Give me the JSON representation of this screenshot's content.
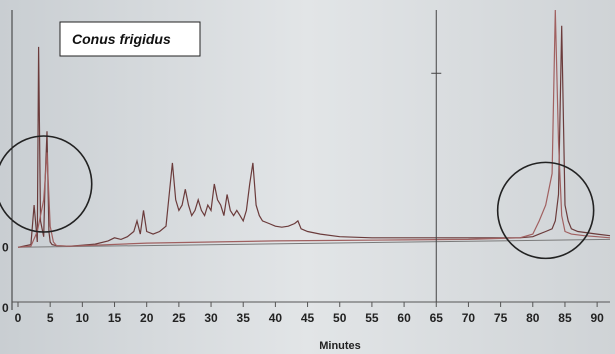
{
  "chart_data": {
    "type": "line",
    "title": "Conus frigidus",
    "xlabel": "Minutes",
    "ylabel": "",
    "xlim": [
      0,
      92
    ],
    "ylim": [
      -10,
      45
    ],
    "x_ticks": [
      0,
      5,
      10,
      15,
      20,
      25,
      30,
      35,
      40,
      45,
      50,
      55,
      60,
      65,
      70,
      75,
      80,
      85,
      90
    ],
    "y_ticks_visible": [
      "0",
      "0"
    ],
    "series": [
      {
        "color": "#6b3b3b",
        "x": [
          0,
          2,
          2.5,
          3,
          3.2,
          3.5,
          4,
          4.2,
          4.5,
          4.8,
          5,
          5.3,
          6,
          8,
          10,
          12,
          14,
          15,
          16,
          17,
          18,
          18.5,
          19,
          19.5,
          20,
          21,
          22,
          23,
          23.5,
          24,
          24.5,
          25,
          25.5,
          26,
          26.5,
          27,
          27.5,
          28,
          28.5,
          29,
          29.5,
          30,
          30.5,
          31,
          31.5,
          32,
          32.5,
          33,
          33.5,
          34,
          34.5,
          35,
          35.5,
          36,
          36.5,
          37,
          37.5,
          38,
          39,
          40,
          41,
          42,
          43,
          43.5,
          44,
          45,
          47,
          50,
          55,
          60,
          65,
          70,
          75,
          78,
          80,
          81,
          82,
          83,
          83.5,
          84,
          84.5,
          85,
          85.5,
          86,
          87,
          90,
          92
        ],
        "y": [
          0,
          0.5,
          8,
          1,
          38,
          5,
          2,
          12,
          22,
          3,
          1,
          0.5,
          0.3,
          0.2,
          0.4,
          0.6,
          1.2,
          1.8,
          1.5,
          2,
          3,
          5,
          2.5,
          7,
          3,
          2.5,
          3,
          4,
          10,
          16,
          9,
          7,
          8,
          11,
          8,
          6,
          7,
          9,
          7,
          6,
          8,
          7,
          12,
          9,
          8,
          6,
          10,
          7,
          6,
          7,
          6,
          5,
          7,
          12,
          16,
          8,
          6,
          5,
          4.5,
          4,
          3.8,
          4,
          4.5,
          5,
          3.5,
          3,
          2.5,
          2,
          1.8,
          1.8,
          1.8,
          1.8,
          1.8,
          1.8,
          2,
          2.5,
          3,
          3.5,
          5,
          10,
          42,
          8,
          5,
          3.5,
          3,
          2.5,
          2.2
        ]
      },
      {
        "color": "#a06060",
        "x": [
          0,
          2,
          3,
          4,
          4.5,
          5,
          5.5,
          6,
          8,
          10,
          20,
          30,
          40,
          50,
          60,
          70,
          78,
          80,
          81,
          82,
          83,
          83.5,
          84,
          84.5,
          85,
          86,
          88,
          90,
          92
        ],
        "y": [
          0,
          0.2,
          3,
          9,
          18,
          4,
          1,
          0.3,
          0.2,
          0.3,
          0.8,
          1,
          1.2,
          1.3,
          1.4,
          1.5,
          1.8,
          2.5,
          5,
          8,
          14,
          45,
          20,
          6,
          3,
          2.5,
          2.2,
          2,
          1.8
        ]
      }
    ],
    "annotations": {
      "circles": [
        {
          "cx": 4,
          "cy": 12
        },
        {
          "cx": 82,
          "cy": 7
        }
      ],
      "vertical_line_x": 65
    },
    "grid": false,
    "legend": "none"
  }
}
